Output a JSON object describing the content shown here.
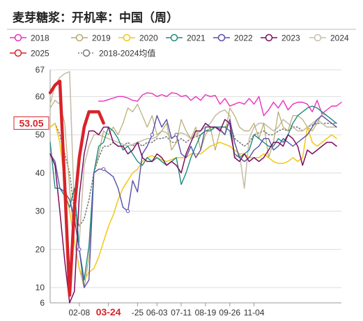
{
  "chart_data": {
    "type": "line",
    "title": "麦芽糖浆：开机率：中国（周）",
    "ylim": [
      6,
      67
    ],
    "y_ticks": [
      6,
      10,
      20,
      30,
      40,
      50,
      60,
      67
    ],
    "x_tick_labels": [
      "02-08",
      "03-24",
      "-25",
      "06-03",
      "07-11",
      "08-19",
      "09-26",
      "11-04"
    ],
    "x_tick_weeks": [
      6,
      12,
      18,
      22,
      27,
      32,
      37,
      42
    ],
    "highlight_tick": "03-24",
    "value_label": "53.05",
    "legend_position": "top",
    "grid": true,
    "series": [
      {
        "name": "2018",
        "color": "#ee2fbf",
        "style": "solid",
        "width": 1.4,
        "marker": "none",
        "x_start": 10,
        "values": [
          58.8,
          58.8,
          59.2,
          59.6,
          60.0,
          60.0,
          59.6,
          59.0,
          58.8,
          60.4,
          61.0,
          60.8,
          60.0,
          60.5,
          60.0,
          61.0,
          60.8,
          60.0,
          60.3,
          59.0,
          60.0,
          59.0,
          60.5,
          60.0,
          60.3,
          58.0,
          59.5,
          57.5,
          58.0,
          58.5,
          58.0,
          59.5,
          58.0,
          60.0,
          55.0,
          56.5,
          58.5,
          57.0,
          59.0,
          56.5,
          58.0,
          58.5,
          58.5,
          58.0,
          56.0,
          59.0,
          55.5,
          56.5,
          57.5,
          57.5,
          58.5
        ]
      },
      {
        "name": "2019",
        "color": "#b5a96d",
        "style": "solid",
        "width": 1.2,
        "marker": "none",
        "x_start": 0,
        "values": [
          57.0,
          59.0,
          58.0,
          53.0,
          36.0,
          22.0,
          15.0,
          10.0,
          18.0,
          40.0,
          45.0,
          51.0,
          50.0,
          52.0,
          50.0,
          53.0,
          57.0,
          56.0,
          58.0,
          55.0,
          52.0,
          55.0,
          50.0,
          51.0,
          53.0,
          46.0,
          48.0,
          54.0,
          51.0,
          49.0,
          52.0,
          46.0,
          50.0,
          52.0,
          46.0,
          51.0,
          50.0,
          57.0,
          55.0,
          52.0,
          51.0,
          51.0,
          53.0,
          49.0,
          53.0,
          44.0,
          48.0,
          56.0,
          52.0,
          51.0,
          55.0,
          55.0,
          54.0,
          52.0,
          51.0,
          53.0,
          55.5,
          55.0,
          54.0,
          53.0
        ]
      },
      {
        "name": "2020",
        "color": "#f3c714",
        "style": "solid",
        "width": 1.5,
        "marker": "none",
        "x_start": 0,
        "values": [
          52.0,
          53.0,
          48.0,
          37.0,
          30.0,
          22.0,
          15.0,
          12.0,
          14.0,
          15.0,
          18.0,
          22.0,
          26.0,
          29.0,
          33.0,
          36.0,
          38.0,
          40.0,
          41.0,
          43.0,
          44.0,
          44.5,
          44.0,
          43.5,
          43.0,
          43.5,
          44.0,
          44.0,
          44.0,
          45.0,
          45.0,
          45.0,
          46.0,
          47.0,
          47.5,
          48.0,
          47.5,
          47.0,
          46.0,
          45.0,
          45.0,
          44.0,
          44.0,
          44.0,
          45.0,
          44.0,
          43.0,
          42.5,
          42.5,
          43.0,
          44.0,
          43.0,
          44.0,
          52.0,
          48.0,
          47.0,
          48.0,
          49.0,
          50.0,
          49.0
        ]
      },
      {
        "name": "2021",
        "color": "#1f8a82",
        "style": "solid",
        "width": 1.4,
        "marker": "none",
        "x_start": 0,
        "values": [
          48.0,
          36.0,
          36.0,
          34.0,
          31.0,
          36.0,
          20.0,
          12.0,
          21.0,
          40.0,
          47.0,
          48.0,
          52.0,
          51.0,
          49.0,
          46.0,
          47.0,
          45.0,
          43.0,
          42.0,
          44.0,
          43.0,
          44.0,
          43.0,
          42.0,
          43.0,
          44.0,
          37.0,
          40.0,
          44.0,
          47.0,
          50.0,
          51.0,
          51.0,
          52.0,
          52.0,
          52.0,
          51.0,
          45.0,
          44.0,
          45.0,
          46.0,
          50.0,
          49.0,
          48.0,
          47.0,
          47.0,
          49.0,
          48.0,
          50.0,
          53.0,
          55.0,
          56.0,
          57.0,
          57.5,
          57.0,
          56.0,
          55.0,
          54.0,
          53.0
        ]
      },
      {
        "name": "2022",
        "color": "#5a4ea6",
        "style": "solid",
        "width": 1.4,
        "marker": "circle",
        "x_start": 0,
        "values": [
          45.0,
          43.0,
          36.0,
          35.0,
          33.0,
          28.0,
          20.0,
          10.0,
          12.0,
          40.0,
          41.0,
          41.0,
          40.0,
          39.0,
          36.0,
          31.0,
          30.0,
          38.0,
          35.0,
          45.0,
          47.0,
          50.0,
          55.0,
          52.0,
          54.0,
          49.0,
          50.0,
          45.0,
          44.0,
          47.0,
          44.0,
          46.0,
          52.0,
          52.0,
          52.0,
          51.5,
          50.0,
          54.0,
          48.0,
          44.0,
          43.0,
          44.0,
          46.0,
          47.0,
          49.0,
          49.0,
          46.0,
          47.0,
          49.0,
          48.0,
          47.0,
          48.0,
          49.0,
          50.0,
          52.0,
          54.0,
          55.0,
          54.0,
          53.0,
          52.0
        ]
      },
      {
        "name": "2023",
        "color": "#7a0f5e",
        "style": "solid",
        "width": 1.5,
        "marker": "none",
        "x_start": 0,
        "values": [
          45.0,
          42.0,
          30.0,
          17.0,
          6.0,
          9.0,
          34.0,
          45.0,
          51.0,
          51.0,
          50.0,
          52.0,
          52.0,
          48.0,
          47.0,
          47.0,
          45.0,
          46.0,
          48.0,
          44.0,
          43.0,
          43.0,
          45.0,
          44.0,
          42.0,
          43.0,
          42.0,
          40.0,
          45.0,
          48.0,
          51.0,
          51.0,
          53.0,
          52.0,
          52.0,
          51.0,
          54.0,
          53.0,
          44.0,
          43.0,
          45.0,
          43.0,
          44.0,
          43.0,
          44.0,
          46.0,
          48.0,
          48.0,
          47.0,
          50.0,
          49.0,
          47.0,
          42.0,
          46.0,
          45.0,
          46.0,
          47.0,
          48.0,
          48.0,
          47.0
        ]
      },
      {
        "name": "2024",
        "color": "#c6bfa9",
        "style": "solid",
        "width": 1.6,
        "marker": "none",
        "x_start": 0,
        "values": [
          58.0,
          63.0,
          65.0,
          66.0,
          66.5,
          30.0,
          22.0,
          42.0,
          47.0,
          50.0,
          50.0,
          49.5,
          49.0,
          48.5,
          48.0,
          47.5,
          47.0,
          47.5,
          48.0,
          48.5,
          49.0,
          49.0,
          49.5,
          51.0,
          50.5,
          49.0,
          50.0,
          50.5,
          50.0,
          49.0,
          50.0,
          51.0,
          52.0,
          53.0,
          55.0,
          56.0,
          56.5,
          55.0,
          44.0,
          45.0,
          36.0,
          49.0,
          52.0,
          53.0,
          53.0,
          52.0,
          51.0,
          52.0,
          54.0,
          53.0,
          52.0,
          51.0,
          51.0,
          52.0,
          53.0,
          54.0,
          53.0,
          52.0,
          52.0,
          52.0
        ]
      },
      {
        "name": "2025",
        "color": "#d8232a",
        "style": "solid",
        "width": 4.5,
        "marker": "none",
        "x_start": 0,
        "values": [
          61.0,
          63.0,
          64.0,
          37.0,
          8.0,
          31.0,
          44.0,
          52.0,
          56.0,
          56.0,
          56.0,
          53.05
        ]
      },
      {
        "name": "2018-2024均值",
        "color": "#7a7a7a",
        "style": "dotted",
        "width": 1.6,
        "marker": "none",
        "x_start": 0,
        "values": [
          52.0,
          53.0,
          50.0,
          45.0,
          40.0,
          30.0,
          26.0,
          28.0,
          33.0,
          40.0,
          44.0,
          47.0,
          47.0,
          48.0,
          47.0,
          47.0,
          48.0,
          47.0,
          48.0,
          47.0,
          48.0,
          48.0,
          49.0,
          49.0,
          49.5,
          48.0,
          48.0,
          49.0,
          48.0,
          49.0,
          49.5,
          50.0,
          51.0,
          51.5,
          52.0,
          52.0,
          52.0,
          53.0,
          49.0,
          48.0,
          47.0,
          48.0,
          50.0,
          50.5,
          51.0,
          50.0,
          50.0,
          51.0,
          51.5,
          51.0,
          52.0,
          52.0,
          51.0,
          52.0,
          52.5,
          53.0,
          53.0,
          53.0,
          53.0,
          53.0
        ]
      }
    ]
  }
}
